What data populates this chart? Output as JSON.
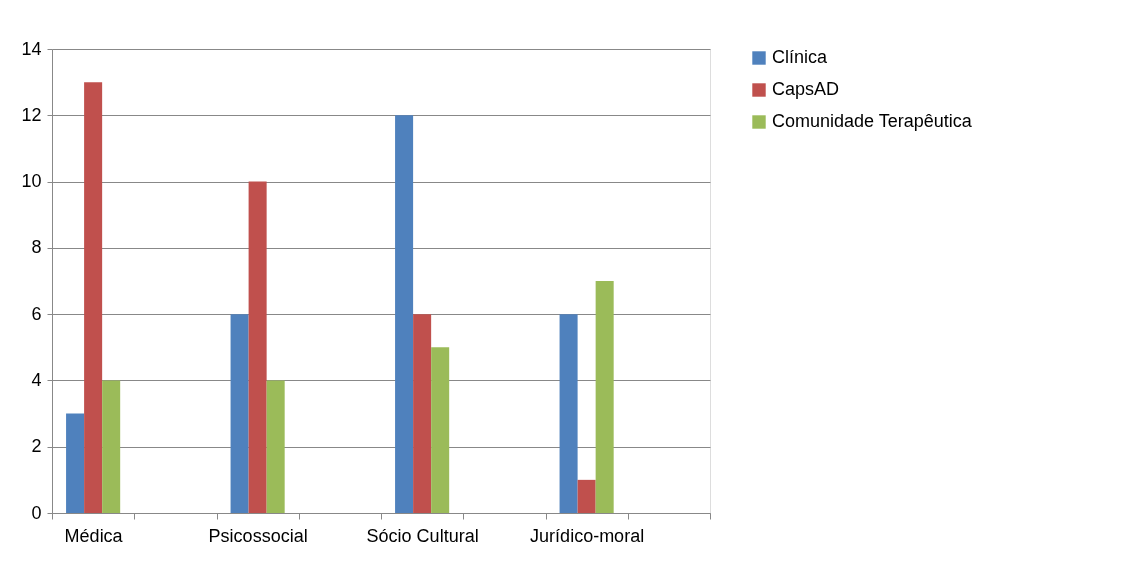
{
  "chart_data": {
    "type": "bar",
    "categories": [
      "Médica",
      null,
      "Psicossocial",
      null,
      "Sócio Cultural",
      null,
      "Jurídico-moral",
      null
    ],
    "series": [
      {
        "name": "Clínica",
        "color": "#4f81bd",
        "values": [
          3,
          null,
          6,
          null,
          12,
          null,
          6,
          null
        ]
      },
      {
        "name": "CapsAD",
        "color": "#c0504d",
        "values": [
          13,
          null,
          10,
          null,
          6,
          null,
          1,
          null
        ]
      },
      {
        "name": "Comunidade Terapêutica",
        "color": "#9bbb59",
        "values": [
          4,
          null,
          4,
          null,
          5,
          null,
          7,
          null
        ]
      }
    ],
    "ylim": [
      0,
      14
    ],
    "yticks": [
      0,
      2,
      4,
      6,
      8,
      10,
      12,
      14
    ],
    "grid": "y",
    "legend": "right"
  }
}
